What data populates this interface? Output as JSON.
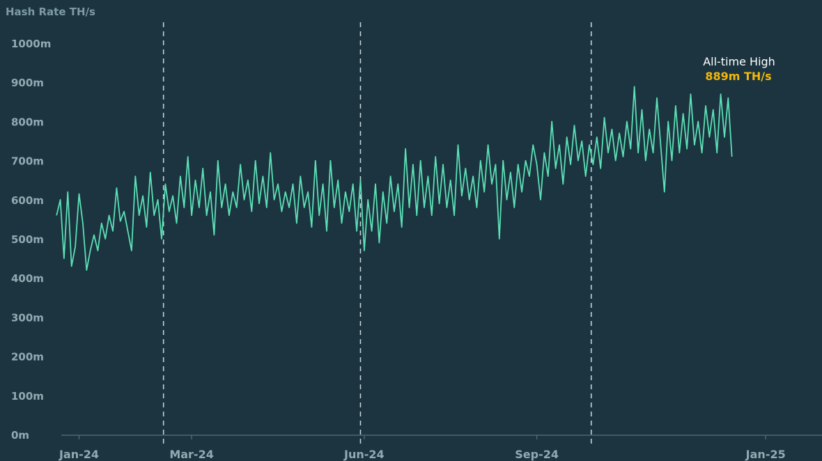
{
  "chart_data": {
    "type": "line",
    "title": "Hash Rate TH/s",
    "xlabel": "",
    "ylabel": "",
    "ylim": [
      0,
      1000
    ],
    "y_ticks": [
      0,
      100,
      200,
      300,
      400,
      500,
      600,
      700,
      800,
      900,
      1000
    ],
    "y_tick_labels": [
      "0m",
      "100m",
      "200m",
      "300m",
      "400m",
      "500m",
      "600m",
      "700m",
      "800m",
      "900m",
      "1000m"
    ],
    "x_ticks": [
      "Jan-24",
      "Mar-24",
      "Jun-24",
      "Sep-24",
      "Jan-25"
    ],
    "x_range": [
      "2023-12-01",
      "2025-01-31"
    ],
    "x_tick_dates": [
      "2024-01-01",
      "2024-03-01",
      "2024-06-01",
      "2024-09-01",
      "2025-01-01"
    ],
    "vertical_markers": [
      "2024-02-15",
      "2024-05-30",
      "2024-09-30"
    ],
    "grid": false,
    "line_color": "#5ce0b5",
    "series": [
      {
        "points": [
          [
            "2023-12-20",
            560
          ],
          [
            "2023-12-22",
            600
          ],
          [
            "2023-12-24",
            450
          ],
          [
            "2023-12-26",
            620
          ],
          [
            "2023-12-28",
            430
          ],
          [
            "2023-12-30",
            480
          ],
          [
            "2024-01-01",
            615
          ],
          [
            "2024-01-03",
            540
          ],
          [
            "2024-01-05",
            420
          ],
          [
            "2024-01-07",
            470
          ],
          [
            "2024-01-09",
            510
          ],
          [
            "2024-01-11",
            470
          ],
          [
            "2024-01-13",
            540
          ],
          [
            "2024-01-15",
            500
          ],
          [
            "2024-01-17",
            560
          ],
          [
            "2024-01-19",
            520
          ],
          [
            "2024-01-21",
            630
          ],
          [
            "2024-01-23",
            545
          ],
          [
            "2024-01-25",
            570
          ],
          [
            "2024-01-27",
            520
          ],
          [
            "2024-01-29",
            470
          ],
          [
            "2024-01-31",
            660
          ],
          [
            "2024-02-02",
            560
          ],
          [
            "2024-02-04",
            610
          ],
          [
            "2024-02-06",
            530
          ],
          [
            "2024-02-08",
            670
          ],
          [
            "2024-02-10",
            560
          ],
          [
            "2024-02-12",
            600
          ],
          [
            "2024-02-14",
            500
          ],
          [
            "2024-02-16",
            640
          ],
          [
            "2024-02-18",
            570
          ],
          [
            "2024-02-20",
            610
          ],
          [
            "2024-02-22",
            540
          ],
          [
            "2024-02-24",
            660
          ],
          [
            "2024-02-26",
            580
          ],
          [
            "2024-02-28",
            710
          ],
          [
            "2024-03-01",
            560
          ],
          [
            "2024-03-03",
            650
          ],
          [
            "2024-03-05",
            580
          ],
          [
            "2024-03-07",
            680
          ],
          [
            "2024-03-09",
            560
          ],
          [
            "2024-03-11",
            620
          ],
          [
            "2024-03-13",
            510
          ],
          [
            "2024-03-15",
            700
          ],
          [
            "2024-03-17",
            580
          ],
          [
            "2024-03-19",
            640
          ],
          [
            "2024-03-21",
            560
          ],
          [
            "2024-03-23",
            620
          ],
          [
            "2024-03-25",
            580
          ],
          [
            "2024-03-27",
            690
          ],
          [
            "2024-03-29",
            600
          ],
          [
            "2024-03-31",
            650
          ],
          [
            "2024-04-02",
            570
          ],
          [
            "2024-04-04",
            700
          ],
          [
            "2024-04-06",
            590
          ],
          [
            "2024-04-08",
            660
          ],
          [
            "2024-04-10",
            580
          ],
          [
            "2024-04-12",
            720
          ],
          [
            "2024-04-14",
            600
          ],
          [
            "2024-04-16",
            640
          ],
          [
            "2024-04-18",
            570
          ],
          [
            "2024-04-20",
            620
          ],
          [
            "2024-04-22",
            580
          ],
          [
            "2024-04-24",
            640
          ],
          [
            "2024-04-26",
            540
          ],
          [
            "2024-04-28",
            660
          ],
          [
            "2024-04-30",
            580
          ],
          [
            "2024-05-02",
            620
          ],
          [
            "2024-05-04",
            530
          ],
          [
            "2024-05-06",
            700
          ],
          [
            "2024-05-08",
            560
          ],
          [
            "2024-05-10",
            640
          ],
          [
            "2024-05-12",
            520
          ],
          [
            "2024-05-14",
            700
          ],
          [
            "2024-05-16",
            580
          ],
          [
            "2024-05-18",
            650
          ],
          [
            "2024-05-20",
            540
          ],
          [
            "2024-05-22",
            620
          ],
          [
            "2024-05-24",
            570
          ],
          [
            "2024-05-26",
            640
          ],
          [
            "2024-05-28",
            520
          ],
          [
            "2024-05-30",
            650
          ],
          [
            "2024-06-01",
            470
          ],
          [
            "2024-06-03",
            600
          ],
          [
            "2024-06-05",
            520
          ],
          [
            "2024-06-07",
            640
          ],
          [
            "2024-06-09",
            490
          ],
          [
            "2024-06-11",
            620
          ],
          [
            "2024-06-13",
            540
          ],
          [
            "2024-06-15",
            660
          ],
          [
            "2024-06-17",
            570
          ],
          [
            "2024-06-19",
            640
          ],
          [
            "2024-06-21",
            530
          ],
          [
            "2024-06-23",
            730
          ],
          [
            "2024-06-25",
            580
          ],
          [
            "2024-06-27",
            690
          ],
          [
            "2024-06-29",
            560
          ],
          [
            "2024-07-01",
            700
          ],
          [
            "2024-07-03",
            580
          ],
          [
            "2024-07-05",
            660
          ],
          [
            "2024-07-07",
            560
          ],
          [
            "2024-07-09",
            710
          ],
          [
            "2024-07-11",
            590
          ],
          [
            "2024-07-13",
            690
          ],
          [
            "2024-07-15",
            580
          ],
          [
            "2024-07-17",
            650
          ],
          [
            "2024-07-19",
            560
          ],
          [
            "2024-07-21",
            740
          ],
          [
            "2024-07-23",
            610
          ],
          [
            "2024-07-25",
            680
          ],
          [
            "2024-07-27",
            600
          ],
          [
            "2024-07-29",
            660
          ],
          [
            "2024-07-31",
            580
          ],
          [
            "2024-08-02",
            700
          ],
          [
            "2024-08-04",
            620
          ],
          [
            "2024-08-06",
            740
          ],
          [
            "2024-08-08",
            640
          ],
          [
            "2024-08-10",
            690
          ],
          [
            "2024-08-12",
            500
          ],
          [
            "2024-08-14",
            700
          ],
          [
            "2024-08-16",
            600
          ],
          [
            "2024-08-18",
            670
          ],
          [
            "2024-08-20",
            580
          ],
          [
            "2024-08-22",
            690
          ],
          [
            "2024-08-24",
            620
          ],
          [
            "2024-08-26",
            700
          ],
          [
            "2024-08-28",
            660
          ],
          [
            "2024-08-30",
            740
          ],
          [
            "2024-09-01",
            690
          ],
          [
            "2024-09-03",
            600
          ],
          [
            "2024-09-05",
            720
          ],
          [
            "2024-09-07",
            660
          ],
          [
            "2024-09-09",
            800
          ],
          [
            "2024-09-11",
            680
          ],
          [
            "2024-09-13",
            740
          ],
          [
            "2024-09-15",
            640
          ],
          [
            "2024-09-17",
            760
          ],
          [
            "2024-09-19",
            690
          ],
          [
            "2024-09-21",
            790
          ],
          [
            "2024-09-23",
            700
          ],
          [
            "2024-09-25",
            750
          ],
          [
            "2024-09-27",
            660
          ],
          [
            "2024-09-29",
            740
          ],
          [
            "2024-10-01",
            690
          ],
          [
            "2024-10-03",
            760
          ],
          [
            "2024-10-05",
            680
          ],
          [
            "2024-10-07",
            810
          ],
          [
            "2024-10-09",
            720
          ],
          [
            "2024-10-11",
            780
          ],
          [
            "2024-10-13",
            700
          ],
          [
            "2024-10-15",
            770
          ],
          [
            "2024-10-17",
            710
          ],
          [
            "2024-10-19",
            800
          ],
          [
            "2024-10-21",
            730
          ],
          [
            "2024-10-23",
            889
          ],
          [
            "2024-10-25",
            720
          ],
          [
            "2024-10-27",
            830
          ],
          [
            "2024-10-29",
            700
          ],
          [
            "2024-10-31",
            780
          ],
          [
            "2024-11-02",
            720
          ],
          [
            "2024-11-04",
            860
          ],
          [
            "2024-11-06",
            740
          ],
          [
            "2024-11-08",
            620
          ],
          [
            "2024-11-10",
            800
          ],
          [
            "2024-11-12",
            700
          ],
          [
            "2024-11-14",
            840
          ],
          [
            "2024-11-16",
            720
          ],
          [
            "2024-11-18",
            820
          ],
          [
            "2024-11-20",
            730
          ],
          [
            "2024-11-22",
            870
          ],
          [
            "2024-11-24",
            740
          ],
          [
            "2024-11-26",
            800
          ],
          [
            "2024-11-28",
            720
          ],
          [
            "2024-11-30",
            840
          ],
          [
            "2024-12-02",
            760
          ],
          [
            "2024-12-04",
            830
          ],
          [
            "2024-12-06",
            720
          ],
          [
            "2024-12-08",
            870
          ],
          [
            "2024-12-10",
            760
          ],
          [
            "2024-12-12",
            860
          ],
          [
            "2024-12-14",
            710
          ]
        ]
      }
    ],
    "annotation": {
      "label": "All-time High",
      "value": "889m TH/s"
    }
  }
}
